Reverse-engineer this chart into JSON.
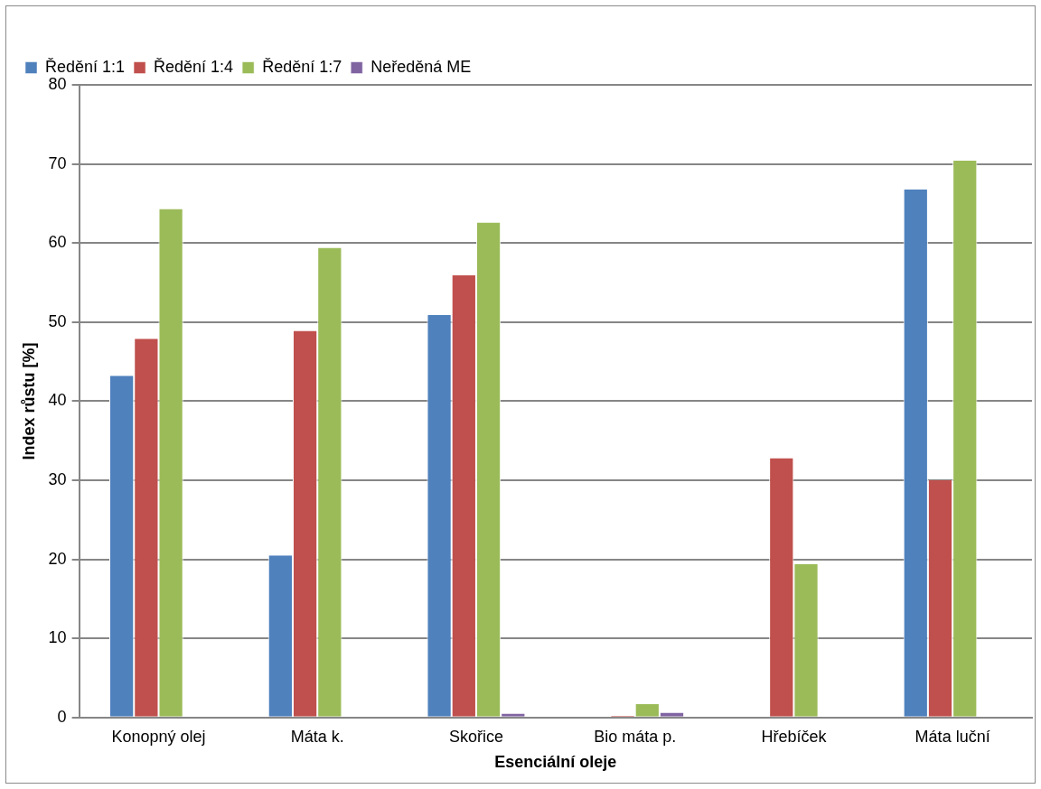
{
  "chart_data": {
    "type": "bar",
    "xlabel": "Esenciální oleje",
    "ylabel": "Index růstu [%]",
    "categories": [
      "Konopný olej",
      "Máta k.",
      "Skořice",
      "Bio máta p.",
      "Hřebíček",
      "Máta luční"
    ],
    "series": [
      {
        "name": "Ředění 1:1",
        "color": "#4f81bd",
        "values": [
          43.2,
          20.5,
          50.9,
          0,
          0,
          66.8
        ]
      },
      {
        "name": "Ředění 1:4",
        "color": "#c0504d",
        "values": [
          47.9,
          48.9,
          55.9,
          0.2,
          32.8,
          30.0
        ]
      },
      {
        "name": "Ředění 1:7",
        "color": "#9bbb59",
        "values": [
          64.3,
          59.4,
          62.6,
          1.7,
          19.4,
          70.4
        ]
      },
      {
        "name": "Neředěná ME",
        "color": "#8064a2",
        "values": [
          0,
          0,
          0.5,
          0.6,
          0,
          0
        ]
      }
    ],
    "ylim": [
      0,
      80
    ],
    "yticks": [
      0,
      10,
      20,
      30,
      40,
      50,
      60,
      70,
      80
    ],
    "grid": "y",
    "legend": "top"
  }
}
